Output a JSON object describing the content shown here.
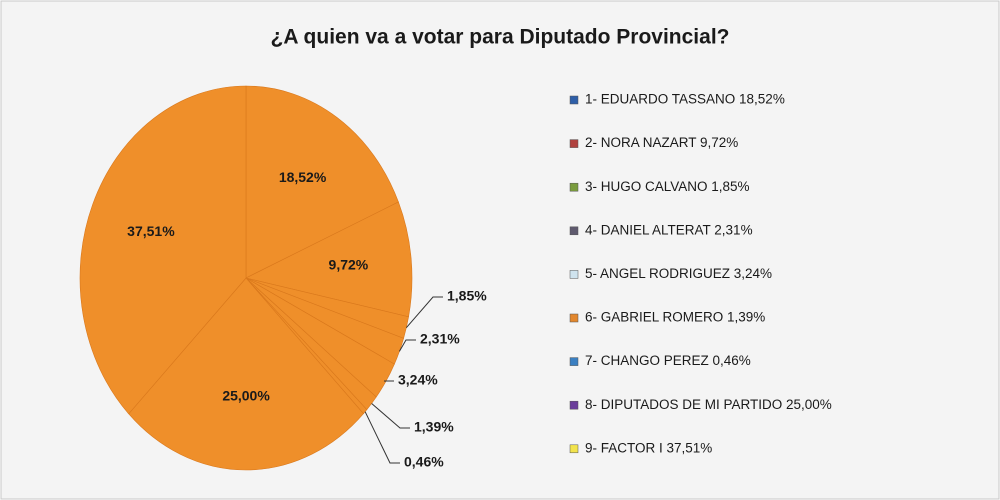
{
  "chart_data": {
    "type": "pie",
    "title": "¿A quien va a votar para Diputado Provincial?",
    "categories": [
      "1- EDUARDO TASSANO  18,52%",
      "2- NORA NAZART   9,72%",
      "3- HUGO CALVANO   1,85%",
      "4- DANIEL ALTERAT  2,31%",
      "5- ANGEL RODRIGUEZ 3,24%",
      "6- GABRIEL ROMERO  1,39%",
      "7- CHANGO PEREZ 0,46%",
      "8- DIPUTADOS DE MI PARTIDO 25,00%",
      "9- FACTOR I 37,51%"
    ],
    "values": [
      18.52,
      9.72,
      1.85,
      2.31,
      3.24,
      1.39,
      0.46,
      25.0,
      37.51
    ],
    "value_labels": [
      "18,52%",
      "9,72%",
      "1,85%",
      "2,31%",
      "3,24%",
      "1,39%",
      "0,46%",
      "25,00%",
      "37,51%"
    ],
    "legend_colors": [
      "#2e5fa8",
      "#b0413e",
      "#7a9c3e",
      "#5f5a6e",
      "#cfe3ee",
      "#e2872d",
      "#3a7fc1",
      "#6a3d9a",
      "#f2e34c"
    ],
    "slice_color": "#ef8f2a"
  }
}
